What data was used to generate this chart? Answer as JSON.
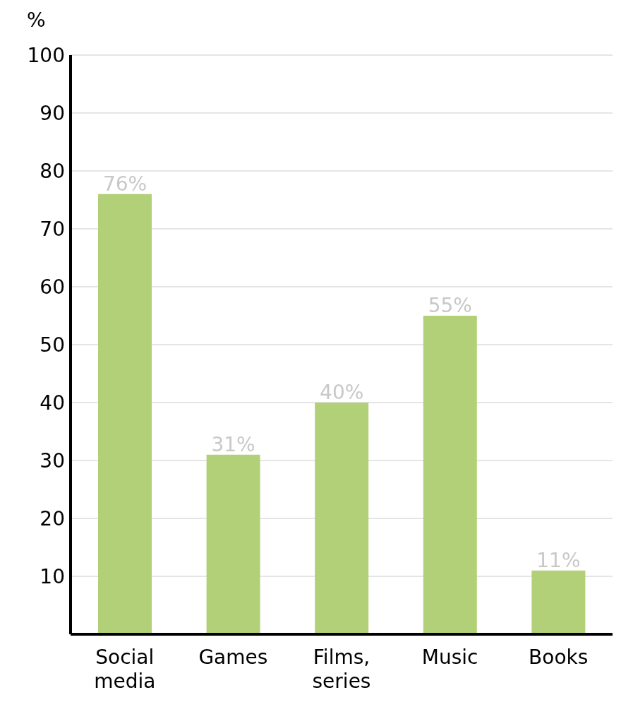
{
  "chart_data": {
    "type": "bar",
    "ylabel": "%",
    "categories": [
      "Social media",
      "Games",
      "Films, series",
      "Music",
      "Books"
    ],
    "values": [
      76,
      31,
      40,
      55,
      11
    ],
    "value_labels": [
      "76%",
      "31%",
      "40%",
      "55%",
      "11%"
    ],
    "color": "#b2d078",
    "ylim": [
      0,
      100
    ],
    "yticks": [
      {
        "value": 0,
        "label": null
      },
      10,
      20,
      30,
      40,
      50,
      60,
      70,
      80,
      90,
      100
    ],
    "grid": "y"
  }
}
